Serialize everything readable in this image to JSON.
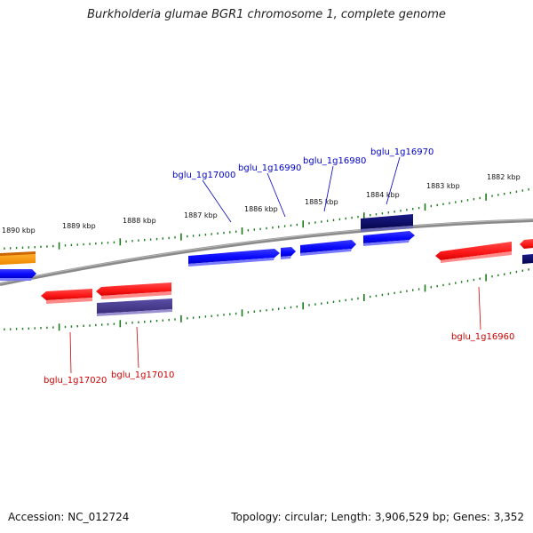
{
  "title": "Burkholderia glumae BGR1 chromosome 1, complete genome",
  "footer": {
    "accession": "Accession: NC_012724",
    "topology": "Topology: circular; Length: 3,906,529 bp; Genes: 3,352"
  },
  "scale_labels": [
    "1890 kbp",
    "1889 kbp",
    "1888 kbp",
    "1887 kbp",
    "1886 kbp",
    "1885 kbp",
    "1884 kbp",
    "1883 kbp",
    "1882 kbp"
  ],
  "gene_labels": {
    "forward": [
      "bglu_1g17000",
      "bglu_1g16990",
      "bglu_1g16980",
      "bglu_1g16970"
    ],
    "reverse": [
      "bglu_1g17020",
      "bglu_1g17010",
      "bglu_1g16960"
    ]
  },
  "colors": {
    "forward_strand": "#0a0aff",
    "reverse_strand": "#ff1a1a",
    "highlight_navy": "#0a0a6e",
    "slate_feature": "#4a3d8f",
    "orange_feature": "#ff9900",
    "backbone": "#7a7a7a",
    "tick": "#1a7a1a",
    "forward_label": "#0000cc",
    "reverse_label": "#cc0000"
  }
}
